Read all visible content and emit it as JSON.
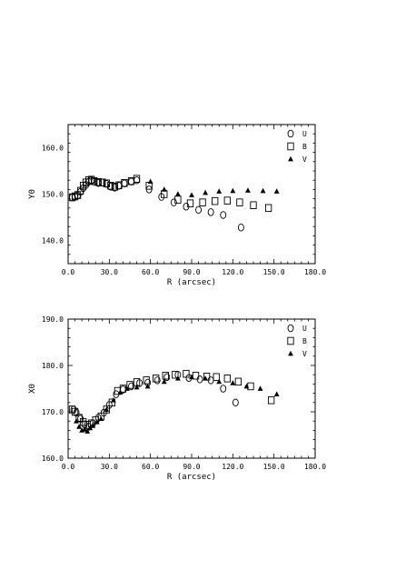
{
  "chart_data": [
    {
      "type": "scatter",
      "xlabel": "R (arcsec)",
      "ylabel": "Y0",
      "xlim": [
        0,
        180
      ],
      "ylim": [
        135,
        165
      ],
      "xticks": [
        "0.0",
        "30.0",
        "60.0",
        "90.0",
        "120.0",
        "150.0",
        "180.0"
      ],
      "yticks": [
        "140.0",
        "150.0",
        "160.0"
      ],
      "legend_position": "top-right",
      "series": [
        {
          "name": "U",
          "marker": "circle",
          "x": [
            3,
            5,
            7,
            9,
            11,
            13,
            15,
            17,
            19,
            22,
            25,
            28,
            31,
            34,
            37,
            41,
            46,
            50,
            59,
            68,
            77,
            86,
            95,
            104,
            113,
            126
          ],
          "y": [
            149.3,
            149.5,
            149.7,
            150.5,
            151.3,
            152.0,
            152.7,
            153.0,
            152.7,
            152.4,
            152.5,
            152.2,
            151.6,
            151.4,
            151.8,
            152.3,
            152.7,
            153.0,
            151.0,
            149.4,
            148.2,
            147.3,
            146.6,
            146.1,
            145.5,
            142.8
          ]
        },
        {
          "name": "B",
          "marker": "square",
          "x": [
            3,
            5,
            7,
            9,
            11,
            13,
            15,
            17,
            19,
            22,
            25,
            28,
            31,
            34,
            37,
            41,
            46,
            50,
            59,
            70,
            80,
            89,
            98,
            107,
            116,
            125,
            135,
            146
          ],
          "y": [
            149.3,
            149.5,
            149.8,
            150.7,
            151.8,
            152.5,
            153.0,
            153.1,
            152.8,
            152.6,
            152.5,
            152.3,
            151.8,
            151.6,
            151.9,
            152.4,
            152.8,
            153.3,
            151.8,
            150.0,
            148.8,
            148.0,
            148.2,
            148.5,
            148.6,
            148.2,
            147.6,
            147.0
          ]
        },
        {
          "name": "V",
          "marker": "triangle",
          "x": [
            60,
            70,
            80,
            90,
            100,
            110,
            120,
            131,
            142,
            152
          ],
          "y": [
            152.7,
            151.0,
            150.0,
            149.8,
            150.3,
            150.6,
            150.7,
            150.8,
            150.7,
            150.6
          ]
        }
      ]
    },
    {
      "type": "scatter",
      "xlabel": "R (arcsec)",
      "ylabel": "X0",
      "xlim": [
        0,
        180
      ],
      "ylim": [
        160,
        190
      ],
      "xticks": [
        "0.0",
        "30.0",
        "60.0",
        "90.0",
        "120.0",
        "150.0",
        "180.0"
      ],
      "yticks": [
        "160.0",
        "170.0",
        "180.0",
        "190.0"
      ],
      "legend_position": "top-right",
      "series": [
        {
          "name": "U",
          "marker": "circle",
          "x": [
            4,
            6,
            9,
            12,
            15,
            18,
            22,
            26,
            30,
            35,
            40,
            46,
            52,
            58,
            65,
            72,
            80,
            88,
            96,
            104,
            113,
            122
          ],
          "y": [
            170.5,
            169.8,
            168.5,
            167.3,
            166.8,
            167.5,
            168.7,
            169.8,
            171.5,
            173.8,
            174.8,
            175.5,
            176.2,
            176.3,
            176.8,
            177.5,
            178.0,
            177.3,
            177.0,
            176.8,
            175.0,
            172.0
          ]
        },
        {
          "name": "B",
          "marker": "square",
          "x": [
            3,
            5,
            8,
            11,
            14,
            17,
            20,
            24,
            28,
            32,
            36,
            40,
            45,
            50,
            57,
            64,
            71,
            78,
            86,
            93,
            101,
            108,
            116,
            124,
            133,
            148
          ],
          "y": [
            170.5,
            170.0,
            168.7,
            167.8,
            167.2,
            167.5,
            168.2,
            169.0,
            170.5,
            172.0,
            174.5,
            175.0,
            175.8,
            176.4,
            176.8,
            177.2,
            177.8,
            178.0,
            178.2,
            177.8,
            177.6,
            177.5,
            177.2,
            176.5,
            175.5,
            172.5
          ]
        },
        {
          "name": "V",
          "marker": "triangle",
          "x": [
            6,
            8,
            10,
            12,
            14,
            16,
            18,
            21,
            24,
            28,
            33,
            38,
            43,
            50,
            58,
            70,
            80,
            90,
            100,
            110,
            120,
            130,
            140,
            152
          ],
          "y": [
            168.0,
            166.8,
            166.0,
            166.2,
            165.8,
            166.5,
            167.0,
            167.8,
            168.5,
            170.5,
            172.5,
            174.2,
            175.0,
            175.3,
            175.5,
            176.5,
            177.2,
            177.5,
            177.2,
            176.5,
            176.2,
            175.5,
            175.0,
            173.8
          ]
        }
      ]
    }
  ]
}
